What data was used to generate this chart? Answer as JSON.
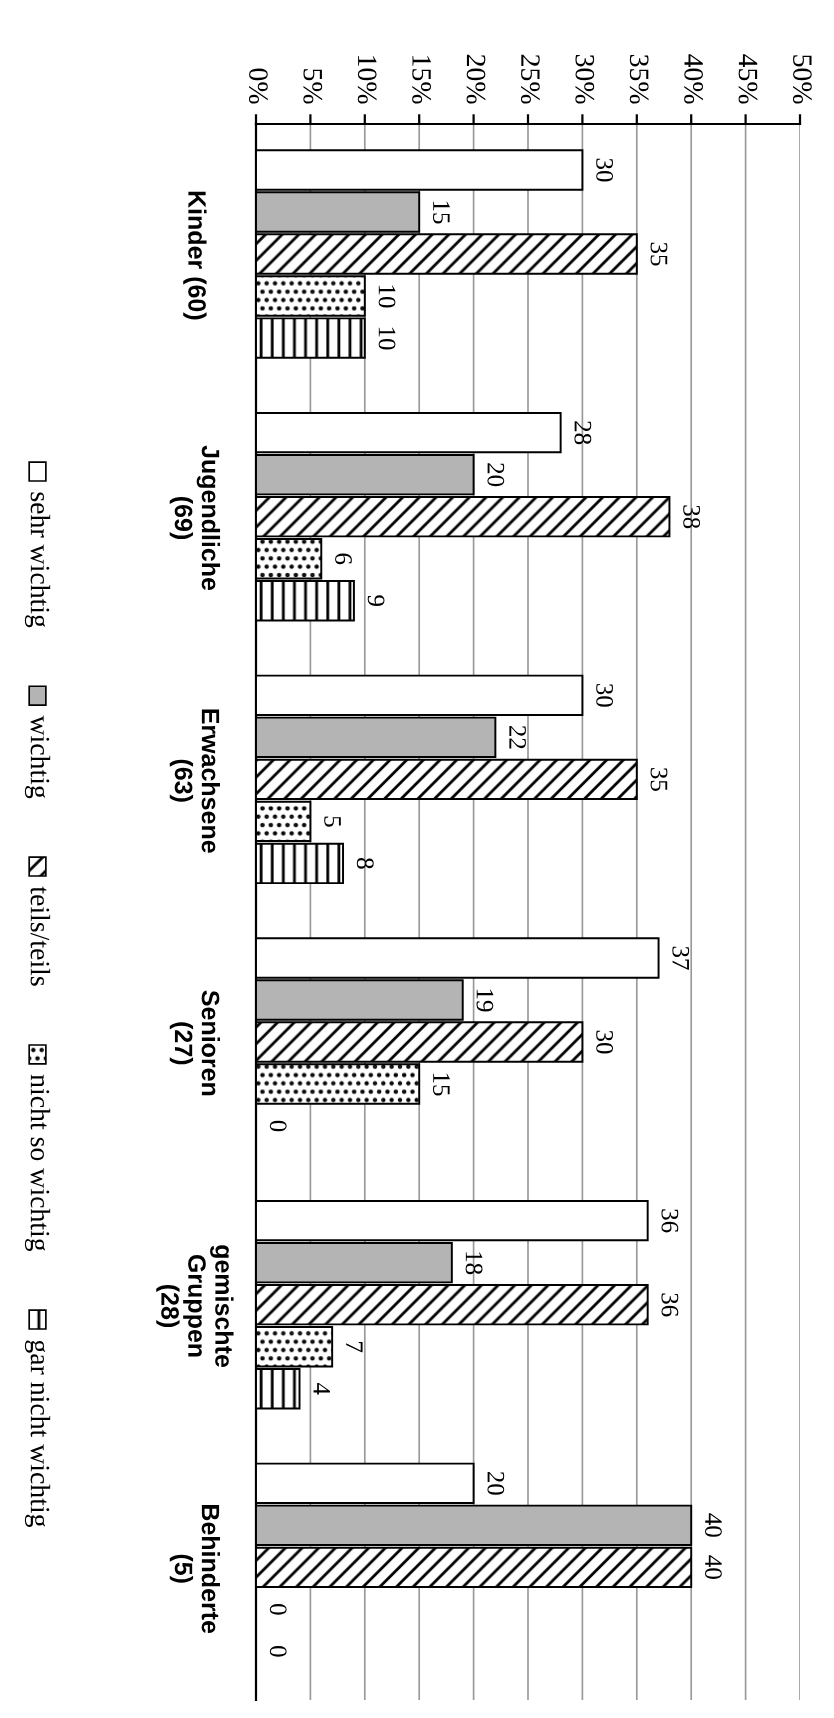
{
  "chart_data": {
    "type": "bar",
    "orientation": "horizontal",
    "categories": [
      "Kinder (60)",
      "Jugendliche\n(69)",
      "Erwachsene\n(63)",
      "Senioren\n(27)",
      "gemischte\nGruppen\n(28)",
      "Behinderte\n(5)"
    ],
    "series": [
      {
        "name": "sehr wichtig",
        "color": "#ffffff",
        "values": [
          30,
          28,
          30,
          37,
          36,
          20
        ]
      },
      {
        "name": "wichtig",
        "color": "#b4b4b4",
        "values": [
          15,
          20,
          22,
          19,
          18,
          40
        ]
      },
      {
        "name": "teils/teils",
        "color": "#000000",
        "values": [
          35,
          38,
          35,
          30,
          36,
          40
        ]
      },
      {
        "name": "nicht so wichtig",
        "color": "#000000",
        "values": [
          10,
          6,
          5,
          15,
          7,
          0
        ]
      },
      {
        "name": "gar nicht wichtig",
        "color": "#000000",
        "values": [
          10,
          9,
          8,
          0,
          4,
          0
        ]
      }
    ],
    "xlim": [
      0,
      50
    ],
    "xticks": [
      {
        "value": 0,
        "label": "0%"
      },
      {
        "value": 5,
        "label": "5%"
      },
      {
        "value": 10,
        "label": "10%"
      },
      {
        "value": 15,
        "label": "15%"
      },
      {
        "value": 20,
        "label": "20%"
      },
      {
        "value": 25,
        "label": "25%"
      },
      {
        "value": 30,
        "label": "30%"
      },
      {
        "value": 35,
        "label": "35%"
      },
      {
        "value": 40,
        "label": "40%"
      },
      {
        "value": 45,
        "label": "45%"
      },
      {
        "value": 50,
        "label": "50%"
      }
    ],
    "grid": "x",
    "data_labels": true,
    "legend": "left"
  }
}
